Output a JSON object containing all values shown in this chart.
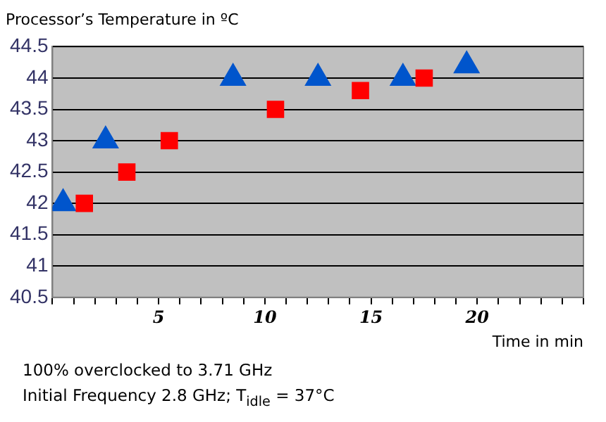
{
  "chart_data": {
    "type": "scatter",
    "title": "Processor’s Temperature in ºC",
    "xlabel": "Time in min",
    "annotations": [
      "100% overclocked to 3.71 GHz",
      "Initial Frequency 2.8 GHz; T$_{idle}$ = 37°C"
    ],
    "series": [
      {
        "color": "#ff0000",
        "marker": "square",
        "x": [
          1.5,
          3.5,
          5.5,
          10.5,
          14.5,
          17.5
        ],
        "values": [
          42.0,
          42.5,
          43.0,
          43.5,
          43.8,
          44.0
        ]
      },
      {
        "color": "#0055cc",
        "marker": "triangle",
        "x": [
          0.5,
          2.5,
          8.5,
          12.5,
          16.5,
          19.5
        ],
        "values": [
          42.0,
          43.0,
          44.0,
          44.0,
          44.0,
          44.2
        ]
      }
    ],
    "xlim": [
      0,
      25
    ],
    "xticks": [
      {
        "value": 0,
        "label": null
      },
      {
        "value": 1,
        "label": null
      },
      {
        "value": 2,
        "label": null
      },
      {
        "value": 3,
        "label": null
      },
      {
        "value": 4,
        "label": null
      },
      5,
      {
        "value": 6,
        "label": null
      },
      {
        "value": 7,
        "label": null
      },
      {
        "value": 8,
        "label": null
      },
      {
        "value": 9,
        "label": null
      },
      10,
      {
        "value": 11,
        "label": null
      },
      {
        "value": 12,
        "label": null
      },
      {
        "value": 13,
        "label": null
      },
      {
        "value": 14,
        "label": null
      },
      15,
      {
        "value": 16,
        "label": null
      },
      {
        "value": 17,
        "label": null
      },
      {
        "value": 18,
        "label": null
      },
      {
        "value": 19,
        "label": null
      },
      20,
      {
        "value": 21,
        "label": null
      },
      {
        "value": 22,
        "label": null
      },
      {
        "value": 23,
        "label": null
      },
      {
        "value": 24,
        "label": null
      },
      {
        "value": 25,
        "label": null
      }
    ],
    "ylim": [
      40.5,
      44.5
    ],
    "yticks": [
      40.5,
      41,
      41.5,
      42,
      42.5,
      43,
      43.5,
      44,
      44.5
    ],
    "grid": "y",
    "legend": false
  }
}
